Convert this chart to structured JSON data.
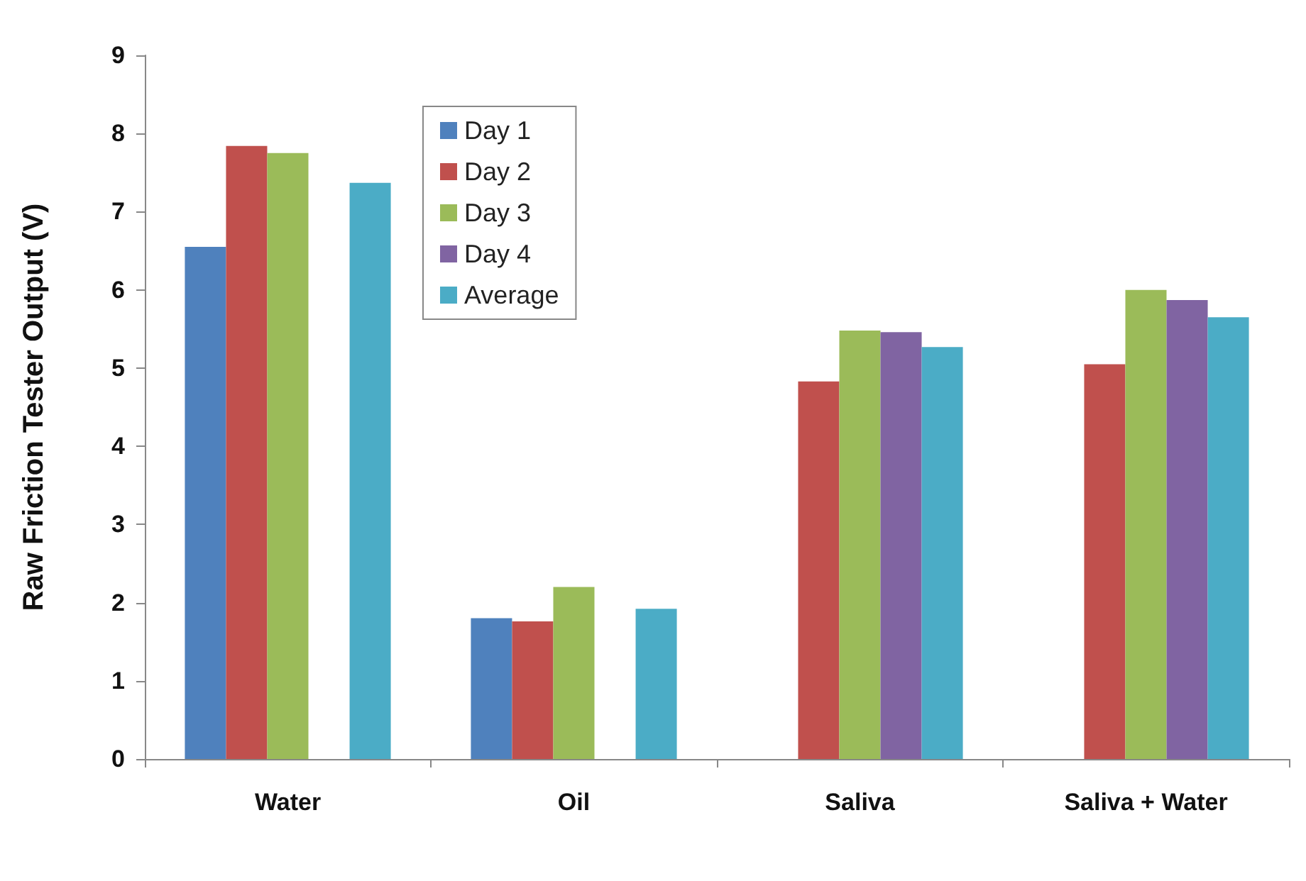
{
  "chart_data": {
    "type": "bar",
    "ylabel": "Raw Friction Tester Output (V)",
    "categories": [
      "Water",
      "Oil",
      "Saliva",
      "Saliva + Water"
    ],
    "series": [
      {
        "name": "Day 1",
        "color": "#4f81bd",
        "values": [
          6.55,
          1.8,
          null,
          null
        ]
      },
      {
        "name": "Day 2",
        "color": "#c0504d",
        "values": [
          7.84,
          1.76,
          4.83,
          5.05
        ]
      },
      {
        "name": "Day 3",
        "color": "#9bbb59",
        "values": [
          7.75,
          2.2,
          5.48,
          6.0
        ]
      },
      {
        "name": "Day 4",
        "color": "#8064a2",
        "values": [
          null,
          null,
          5.46,
          5.87
        ]
      },
      {
        "name": "Average",
        "color": "#4bacc6",
        "values": [
          7.37,
          1.92,
          5.27,
          5.65
        ]
      }
    ],
    "ylim": [
      0,
      9
    ],
    "yticks": [
      0,
      1,
      2,
      3,
      4,
      5,
      6,
      7,
      8,
      9
    ],
    "grid": false,
    "legend": "top left"
  }
}
